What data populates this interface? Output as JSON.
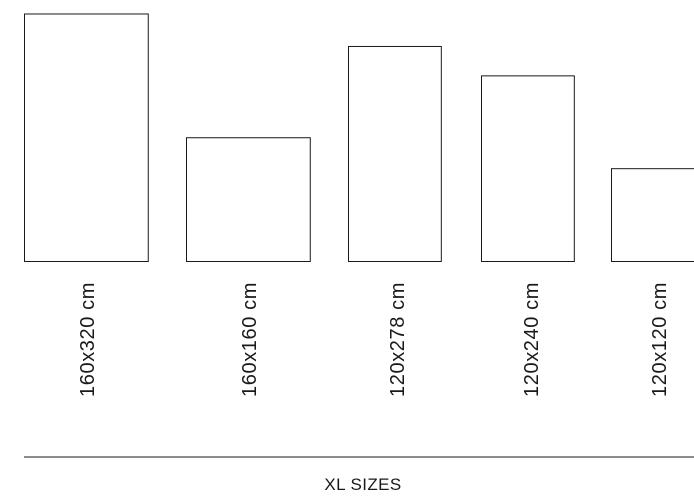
{
  "sizes": [
    {
      "label": "160x320 cm",
      "width_cm": 160,
      "height_cm": 320
    },
    {
      "label": "160x160 cm",
      "width_cm": 160,
      "height_cm": 160
    },
    {
      "label": "120x278 cm",
      "width_cm": 120,
      "height_cm": 278
    },
    {
      "label": "120x240 cm",
      "width_cm": 120,
      "height_cm": 240
    },
    {
      "label": "120x120 cm",
      "width_cm": 120,
      "height_cm": 120
    }
  ],
  "footer": {
    "title": "XL SIZES"
  },
  "colors": {
    "stroke": "#1a1a1a",
    "background": "#ffffff"
  }
}
